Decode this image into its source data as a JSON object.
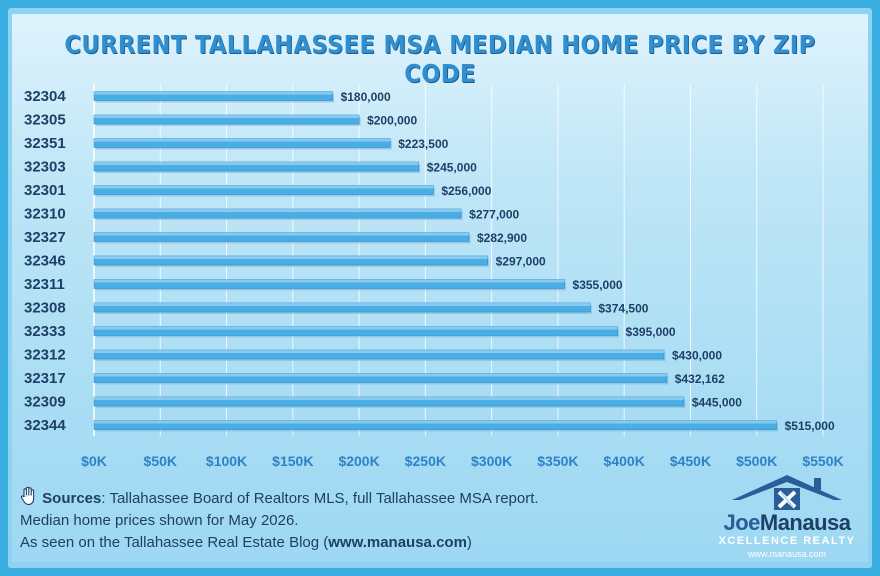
{
  "chart_data": {
    "type": "bar",
    "orientation": "horizontal",
    "title": "CURRENT TALLAHASSEE MSA MEDIAN HOME PRICE BY ZIP CODE",
    "xlabel": "",
    "ylabel": "",
    "xlim": [
      0,
      550000
    ],
    "grid": true,
    "categories": [
      "32304",
      "32305",
      "32351",
      "32303",
      "32301",
      "32310",
      "32327",
      "32346",
      "32311",
      "32308",
      "32333",
      "32312",
      "32317",
      "32309",
      "32344"
    ],
    "values": [
      180000,
      200000,
      223500,
      245000,
      256000,
      277000,
      282900,
      297000,
      355000,
      374500,
      395000,
      430000,
      432162,
      445000,
      515000
    ],
    "value_labels": [
      "$180,000",
      "$200,000",
      "$223,500",
      "$245,000",
      "$256,000",
      "$277,000",
      "$282,900",
      "$297,000",
      "$355,000",
      "$374,500",
      "$395,000",
      "$430,000",
      "$432,162",
      "$445,000",
      "$515,000"
    ],
    "x_ticks": [
      0,
      50000,
      100000,
      150000,
      200000,
      250000,
      300000,
      350000,
      400000,
      450000,
      500000,
      550000
    ],
    "x_tick_labels": [
      "$0K",
      "$50K",
      "$100K",
      "$150K",
      "$200K",
      "$250K",
      "$300K",
      "$350K",
      "$400K",
      "$450K",
      "$500K",
      "$550K"
    ],
    "colors": {
      "bar": "#4aaee6",
      "bar_edge": "#2d8fd0",
      "grid": "#ffffff"
    }
  },
  "footer": {
    "sources_label": "Sources",
    "sources_text": ":  Tallahassee Board of Realtors MLS, full Tallahassee MSA report.",
    "line2": "Median home prices shown for May 2026.",
    "line3_prefix": "As seen on the Tallahassee Real Estate Blog (",
    "line3_link": "www.manausa.com",
    "line3_suffix": ")",
    "hand_icon": "raised-hand-icon"
  },
  "logo": {
    "name_first": "Joe",
    "name_second": "Manausa",
    "tagline": "XCELLENCE REALTY",
    "url": "www.manausa.com",
    "icon": "house-x-icon"
  }
}
